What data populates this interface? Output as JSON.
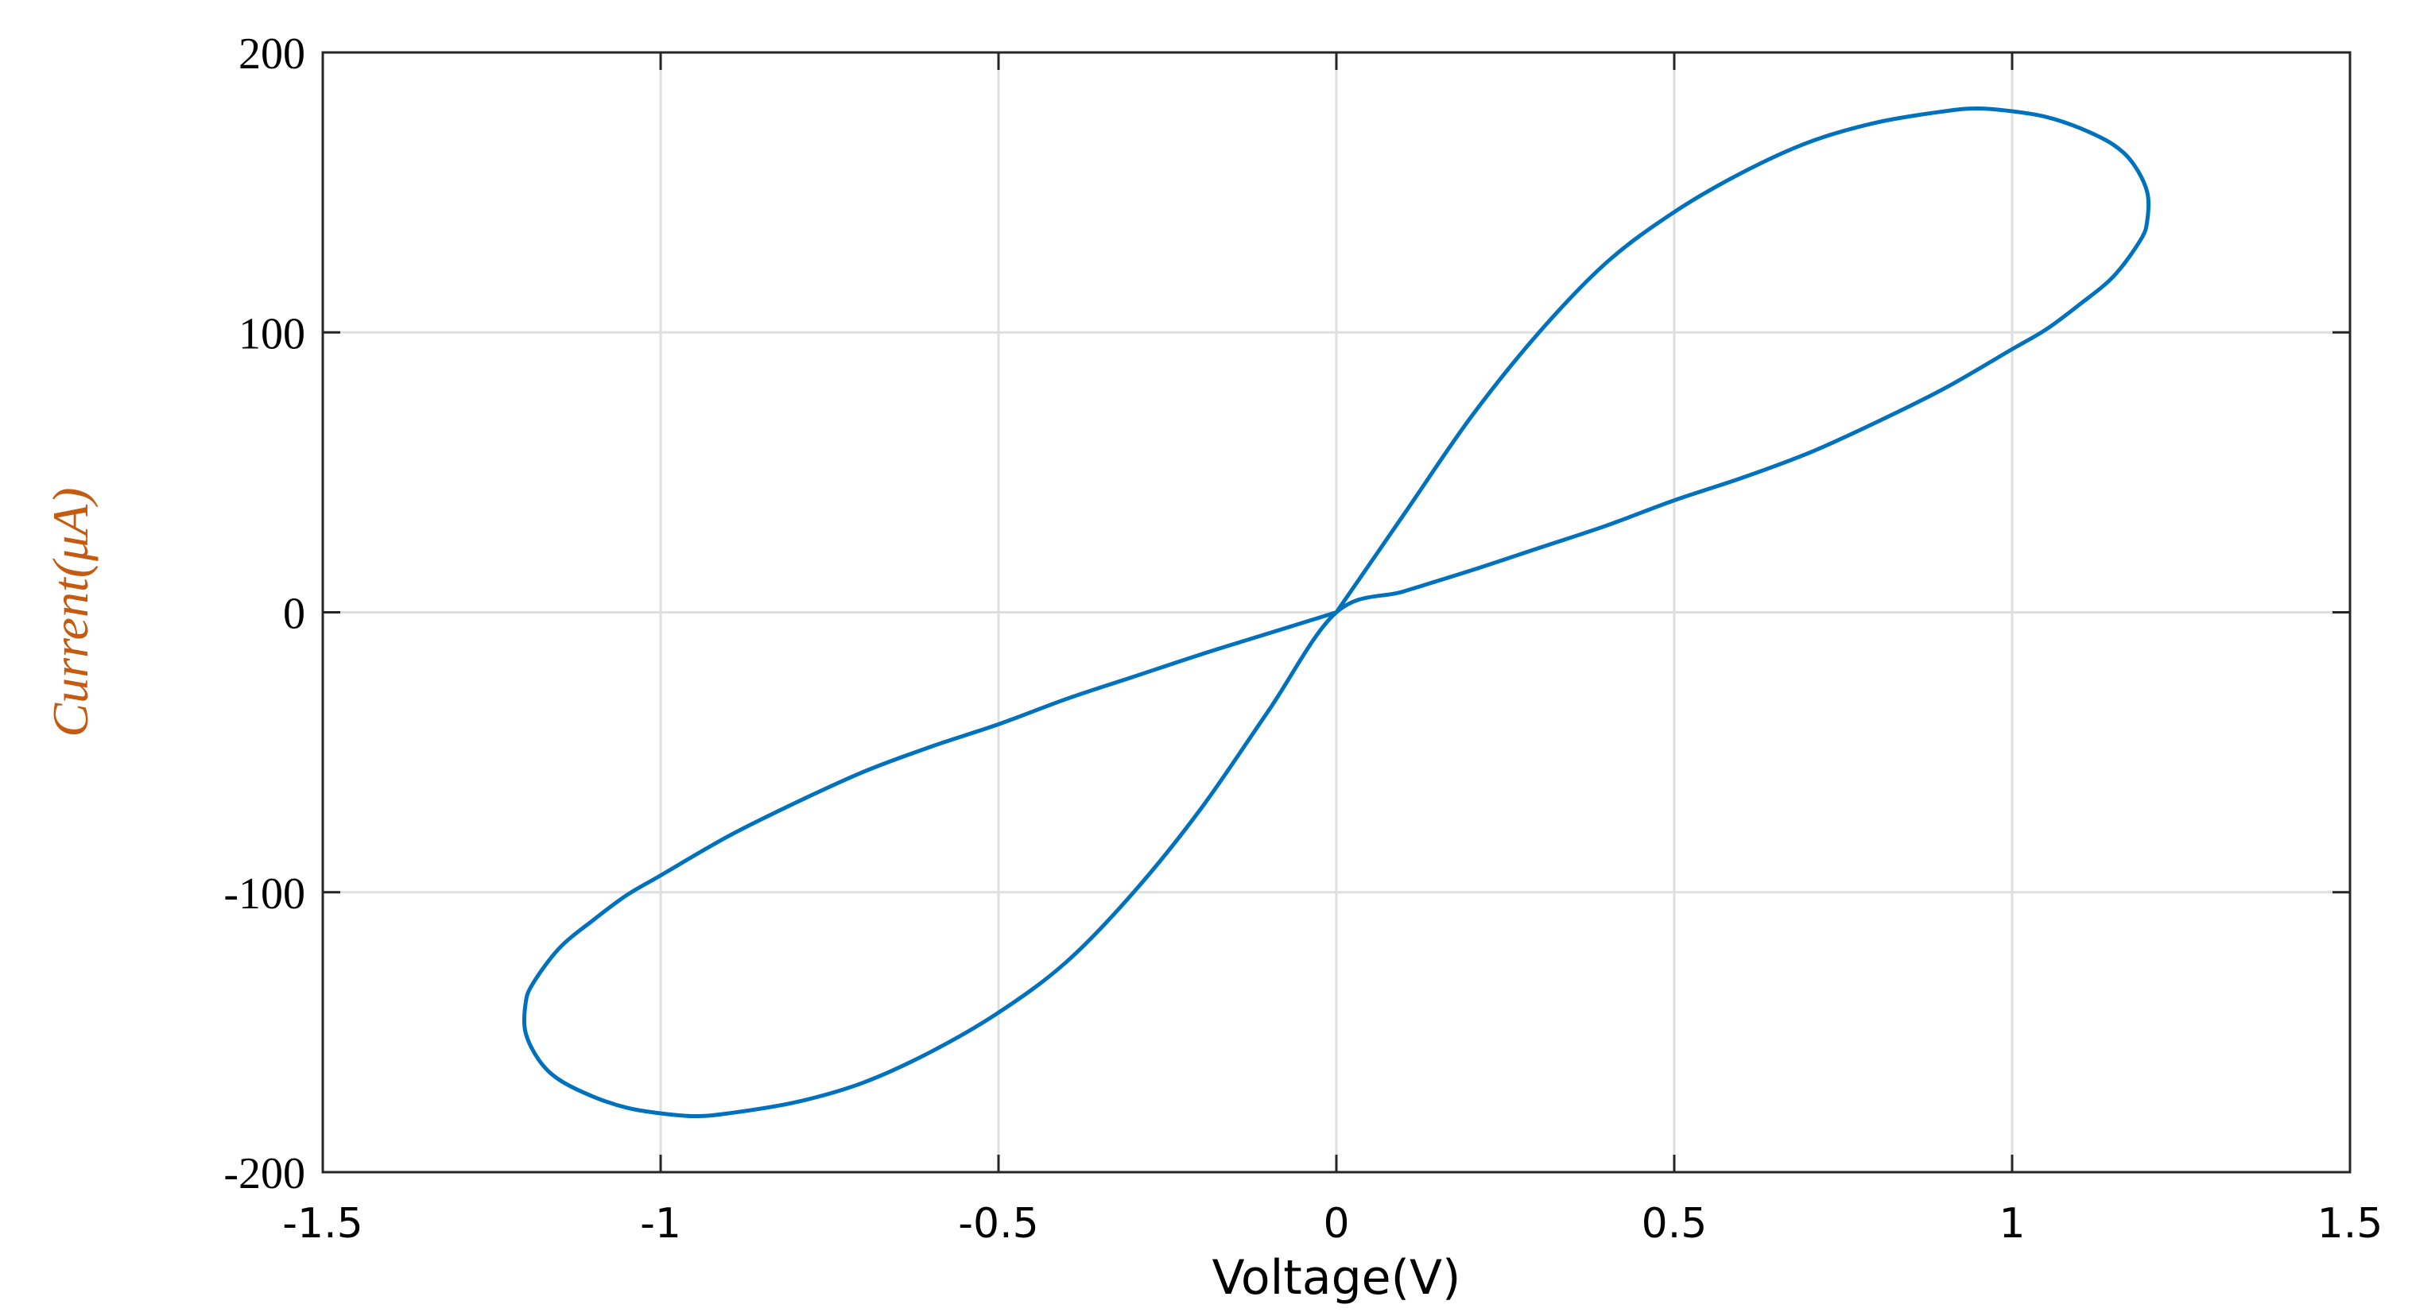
{
  "chart_data": {
    "type": "line",
    "title": "",
    "xlabel": "Voltage(V)",
    "ylabel": "Current(μA)",
    "xlim": [
      -1.5,
      1.5
    ],
    "ylim": [
      -200,
      200
    ],
    "xticks": [
      -1.5,
      -1,
      -0.5,
      0,
      0.5,
      1,
      1.5
    ],
    "xtick_labels": [
      "-1.5",
      "-1",
      "-0.5",
      "0",
      "0.5",
      "1",
      "1.5"
    ],
    "yticks": [
      200,
      100,
      0,
      -100,
      -200
    ],
    "ytick_labels": [
      "200",
      "100",
      "0",
      "-100",
      "-200"
    ],
    "grid": true,
    "colors": {
      "series": "#0072BD",
      "ylabel": "#C55A11",
      "grid": "#DFDFDF",
      "axes": "#262626"
    },
    "series": [
      {
        "name": "",
        "description_points": "pinched hysteresis loop (I-V)",
        "x": [
          0,
          0.1,
          0.2,
          0.3,
          0.4,
          0.5,
          0.6,
          0.7,
          0.8,
          0.9,
          0.95,
          1.0,
          1.05,
          1.1,
          1.15,
          1.18,
          1.2,
          1.2,
          1.19,
          1.15,
          1.1,
          1.05,
          1.0,
          0.9,
          0.8,
          0.7,
          0.6,
          0.5,
          0.4,
          0.3,
          0.2,
          0.1,
          0,
          -0.1,
          -0.2,
          -0.3,
          -0.4,
          -0.5,
          -0.6,
          -0.7,
          -0.8,
          -0.9,
          -0.95,
          -1.0,
          -1.05,
          -1.1,
          -1.15,
          -1.18,
          -1.2,
          -1.2,
          -1.19,
          -1.15,
          -1.1,
          -1.05,
          -1.0,
          -0.9,
          -0.8,
          -0.7,
          -0.6,
          -0.5,
          -0.4,
          -0.3,
          -0.2,
          -0.1,
          0
        ],
        "y": [
          0,
          35,
          70,
          100,
          125,
          143,
          157,
          168,
          175,
          179,
          180,
          179,
          177,
          173,
          167,
          160,
          150,
          140,
          133,
          120,
          110,
          101,
          94,
          80,
          68,
          57,
          48,
          40,
          31,
          23,
          15,
          7.5,
          0,
          -35,
          -70,
          -100,
          -125,
          -143,
          -157,
          -168,
          -175,
          -179,
          -180,
          -179,
          -177,
          -173,
          -167,
          -160,
          -150,
          -140,
          -133,
          -120,
          -110,
          -101,
          -94,
          -80,
          -68,
          -57,
          -48,
          -40,
          -31,
          -23,
          -15,
          -7.5,
          0
        ]
      }
    ]
  }
}
